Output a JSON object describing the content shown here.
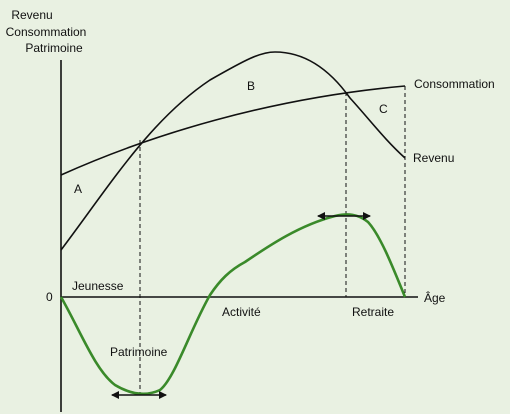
{
  "y_axis_label": [
    "Revenu",
    "Consommation",
    "Patrimoine"
  ],
  "x_axis_label": "Âge",
  "origin_label": "0",
  "curves": {
    "consumption": "Consommation",
    "income": "Revenu",
    "wealth": "Patrimoine"
  },
  "regions": {
    "a": "A",
    "b": "B",
    "c": "C"
  },
  "phases": {
    "youth": "Jeunesse",
    "activity": "Activité",
    "retirement": "Retraite"
  },
  "colors": {
    "wealth_curve": "#3a8a2a",
    "axes": "#111111",
    "background": "#e9f1e2"
  }
}
